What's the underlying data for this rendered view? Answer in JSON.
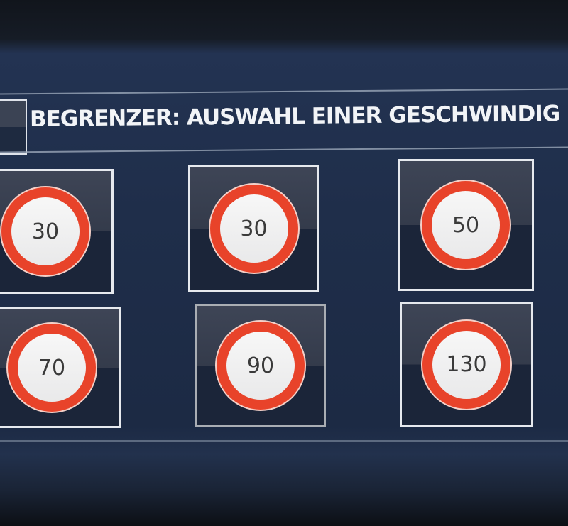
{
  "header": {
    "title": "BEGRENZER: AUSWAHL EINER GESCHWINDIG"
  },
  "colors": {
    "background": "#1f2e4a",
    "sign_ring": "#e8432a",
    "tile_border": "#e6e9ee",
    "selected_border": "#a9adb3"
  },
  "speeds": [
    {
      "value": "30",
      "icon": "speed-limit-sign",
      "selected": false
    },
    {
      "value": "30",
      "icon": "speed-limit-sign",
      "selected": false
    },
    {
      "value": "50",
      "icon": "speed-limit-sign",
      "selected": false
    },
    {
      "value": "70",
      "icon": "speed-limit-sign",
      "selected": false
    },
    {
      "value": "90",
      "icon": "speed-limit-sign",
      "selected": true
    },
    {
      "value": "130",
      "icon": "speed-limit-sign",
      "selected": false
    }
  ]
}
